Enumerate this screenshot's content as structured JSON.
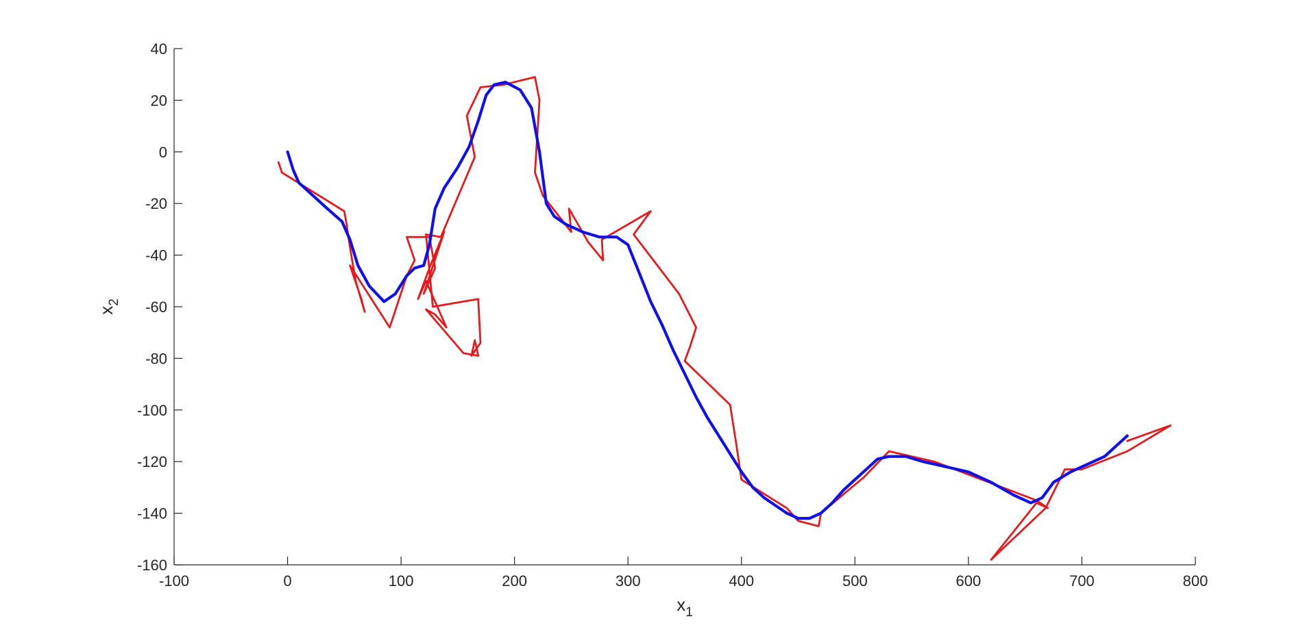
{
  "chart_data": {
    "type": "line",
    "xlabel": "x",
    "xlabel_sub": "1",
    "ylabel": "x",
    "ylabel_sub": "2",
    "xlim": [
      -100,
      800
    ],
    "ylim": [
      -160,
      40
    ],
    "xticks": [
      -100,
      0,
      100,
      200,
      300,
      400,
      500,
      600,
      700,
      800
    ],
    "yticks": [
      -160,
      -140,
      -120,
      -100,
      -80,
      -60,
      -40,
      -20,
      0,
      20,
      40
    ],
    "grid": false,
    "legend": "none",
    "series": [
      {
        "color": "#e41a1c",
        "x": [
          -8,
          -5,
          50,
          52,
          55,
          60,
          68,
          65,
          55,
          90,
          105,
          112,
          105,
          125,
          130,
          120,
          138,
          125,
          115,
          122,
          140,
          130,
          122,
          155,
          168,
          165,
          162,
          170,
          168,
          128,
          122,
          135,
          165,
          158,
          170,
          190,
          218,
          222,
          218,
          225,
          250,
          248,
          265,
          278,
          277,
          320,
          305,
          345,
          360,
          355,
          350,
          390,
          395,
          400,
          440,
          450,
          468,
          470,
          508,
          530,
          540,
          570,
          660,
          670,
          660,
          620,
          668,
          685,
          700,
          740,
          778,
          740
        ],
        "y": [
          -4,
          -8,
          -23,
          -28,
          -37,
          -50,
          -62,
          -57,
          -44,
          -68,
          -48,
          -42,
          -33,
          -33,
          -45,
          -55,
          -31,
          -45,
          -57,
          -50,
          -68,
          -63,
          -61,
          -78,
          -79,
          -73,
          -79,
          -74,
          -57,
          -60,
          -32,
          -33,
          -2,
          14,
          25,
          26,
          29,
          20,
          -8,
          -17,
          -31,
          -22,
          -35,
          -42,
          -34,
          -23,
          -32,
          -55,
          -68,
          -75,
          -81,
          -98,
          -112,
          -127,
          -138,
          -143,
          -145,
          -140,
          -126,
          -116,
          -117,
          -120,
          -135,
          -138,
          -136,
          -158,
          -138,
          -123,
          -123,
          -116,
          -106,
          -112
        ]
      },
      {
        "color": "#1010e8",
        "x": [
          0,
          5,
          10,
          20,
          35,
          48,
          55,
          62,
          72,
          85,
          95,
          105,
          112,
          120,
          125,
          130,
          138,
          150,
          160,
          168,
          175,
          182,
          192,
          205,
          215,
          222,
          228,
          235,
          245,
          260,
          275,
          290,
          300,
          310,
          320,
          330,
          340,
          350,
          360,
          370,
          380,
          390,
          400,
          410,
          420,
          430,
          440,
          450,
          460,
          470,
          480,
          490,
          500,
          510,
          520,
          530,
          545,
          560,
          580,
          600,
          620,
          640,
          655,
          665,
          675,
          690,
          705,
          720,
          740
        ],
        "y": [
          0,
          -7,
          -12,
          -16,
          -22,
          -27,
          -34,
          -44,
          -52,
          -58,
          -55,
          -48,
          -45,
          -44,
          -36,
          -22,
          -14,
          -6,
          2,
          12,
          22,
          26,
          27,
          24,
          17,
          0,
          -20,
          -25,
          -28,
          -31,
          -33,
          -33,
          -36,
          -47,
          -58,
          -67,
          -77,
          -86,
          -95,
          -103,
          -110,
          -117,
          -124,
          -130,
          -134,
          -137,
          -140,
          -142,
          -142,
          -140,
          -136,
          -131,
          -127,
          -123,
          -119,
          -118,
          -118,
          -120,
          -122,
          -124,
          -128,
          -133,
          -136,
          -134,
          -128,
          -124,
          -121,
          -118,
          -110
        ]
      }
    ]
  }
}
